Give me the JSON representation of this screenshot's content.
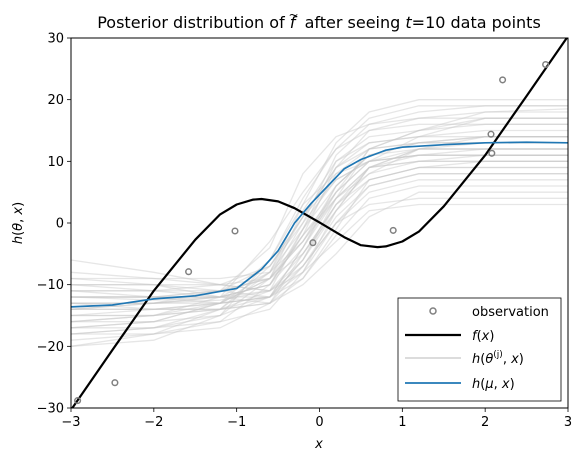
{
  "chart_data": {
    "type": "line",
    "title": "Posterior distribution of f̃ after seeing t=10 data points",
    "title_parts": {
      "pre": "Posterior distribution of ",
      "f": "f",
      "tilde": "~",
      "mid": " after seeing ",
      "t": "t",
      "post": "=10 data points"
    },
    "xlabel": "x",
    "ylabel_parts": {
      "h": "h",
      "open": "(",
      "theta": "θ",
      "comma": ", ",
      "x": "x",
      "close": ")"
    },
    "xlim": [
      -3,
      3
    ],
    "ylim": [
      -30,
      30
    ],
    "xticks": [
      -3,
      -2,
      -1,
      0,
      1,
      2,
      3
    ],
    "yticks": [
      -30,
      -20,
      -10,
      0,
      10,
      20,
      30
    ],
    "xtick_labels": [
      "−3",
      "−2",
      "−1",
      "0",
      "1",
      "2",
      "3"
    ],
    "ytick_labels": [
      "−30",
      "−20",
      "−10",
      "0",
      "10",
      "20",
      "30"
    ],
    "grid": false,
    "legend_position": "lower-right",
    "legend": [
      {
        "key": "observation",
        "label": "observation"
      },
      {
        "key": "f",
        "label_parts": [
          "f",
          "(",
          "x",
          ")"
        ]
      },
      {
        "key": "samples",
        "label_parts": [
          "h",
          "(",
          "θ",
          "(j)",
          ", ",
          "x",
          ")"
        ]
      },
      {
        "key": "mean",
        "label_parts": [
          "h",
          "(",
          "μ",
          ", ",
          "x",
          ")"
        ]
      }
    ],
    "colors": {
      "observation": "#808080",
      "f": "#000000",
      "samples": "#c8c8c8",
      "mean": "#1f77b4"
    },
    "observations": {
      "x": [
        -2.92,
        -2.47,
        -1.58,
        -1.02,
        -0.08,
        0.89,
        2.07,
        2.08,
        2.21,
        2.73
      ],
      "y": [
        -28.8,
        -25.9,
        -7.9,
        -1.3,
        -3.2,
        -1.2,
        14.4,
        11.3,
        23.2,
        25.7
      ]
    },
    "series": [
      {
        "key": "f",
        "x": [
          -3.0,
          -2.5,
          -2.0,
          -1.5,
          -1.2,
          -1.0,
          -0.8,
          -0.7,
          -0.5,
          -0.3,
          0.0,
          0.3,
          0.5,
          0.7,
          0.8,
          1.0,
          1.2,
          1.5,
          2.0,
          2.5,
          3.0
        ],
        "y": [
          -30.3,
          -20.6,
          -11.0,
          -2.7,
          1.4,
          3.0,
          3.8,
          3.9,
          3.5,
          2.4,
          0.1,
          -2.3,
          -3.6,
          -3.9,
          -3.8,
          -3.0,
          -1.4,
          2.7,
          11.0,
          20.6,
          30.3
        ]
      },
      {
        "key": "mean",
        "x": [
          -3.0,
          -2.5,
          -2.0,
          -1.5,
          -1.0,
          -0.7,
          -0.5,
          -0.3,
          -0.1,
          0.1,
          0.3,
          0.5,
          0.8,
          1.0,
          1.5,
          2.0,
          2.5,
          3.0
        ],
        "y": [
          -13.6,
          -13.3,
          -12.3,
          -11.8,
          -10.6,
          -7.5,
          -4.5,
          0.0,
          3.2,
          6.0,
          8.8,
          10.3,
          11.8,
          12.3,
          12.7,
          13.0,
          13.1,
          13.0
        ]
      }
    ],
    "posterior_samples": [
      {
        "x": [
          -3,
          -2,
          -1.2,
          -0.6,
          -0.2,
          0.2,
          0.6,
          1.2,
          2,
          3
        ],
        "y": [
          -12,
          -12.5,
          -12,
          -10,
          -4,
          6,
          11,
          12,
          12,
          12
        ]
      },
      {
        "x": [
          -3,
          -2,
          -1.2,
          -0.6,
          -0.2,
          0.2,
          0.6,
          1.2,
          2,
          3
        ],
        "y": [
          -18,
          -17,
          -14,
          -8,
          1,
          9,
          12,
          15,
          18,
          18.5
        ]
      },
      {
        "x": [
          -3,
          -2,
          -1.2,
          -0.6,
          -0.2,
          0.2,
          0.6,
          1.2,
          2,
          3
        ],
        "y": [
          -14,
          -14,
          -13,
          -9,
          -2,
          5,
          10,
          11,
          12,
          12
        ]
      },
      {
        "x": [
          -3,
          -2,
          -1.2,
          -0.6,
          -0.2,
          0.2,
          0.6,
          1.2,
          2,
          3
        ],
        "y": [
          -20,
          -19,
          -15,
          -6,
          3,
          8,
          10,
          14,
          17,
          17
        ]
      },
      {
        "x": [
          -3,
          -2,
          -1.2,
          -0.6,
          -0.2,
          0.2,
          0.6,
          1.2,
          2,
          3
        ],
        "y": [
          -10,
          -10,
          -11,
          -12,
          -6,
          4,
          12,
          13,
          13,
          13
        ]
      },
      {
        "x": [
          -3,
          -2,
          -1.2,
          -0.6,
          -0.2,
          0.2,
          0.6,
          1.2,
          2,
          3
        ],
        "y": [
          -16,
          -15,
          -12,
          -3,
          5,
          12,
          17,
          19,
          19,
          19
        ]
      },
      {
        "x": [
          -3,
          -2,
          -1.2,
          -0.6,
          -0.2,
          0.2,
          0.6,
          1.2,
          2,
          3
        ],
        "y": [
          -8,
          -9,
          -10,
          -11,
          -8,
          2,
          9,
          10,
          10,
          10
        ]
      },
      {
        "x": [
          -3,
          -2,
          -1.2,
          -0.6,
          -0.2,
          0.2,
          0.6,
          1.2,
          2,
          3
        ],
        "y": [
          -17,
          -16,
          -13,
          -12,
          -9,
          -1,
          7,
          9,
          9,
          9
        ]
      },
      {
        "x": [
          -3,
          -2,
          -1.2,
          -0.6,
          -0.2,
          0.2,
          0.6,
          1.2,
          2,
          3
        ],
        "y": [
          -13,
          -13,
          -12.5,
          -11,
          -1,
          10,
          14,
          15,
          16,
          16
        ]
      },
      {
        "x": [
          -3,
          -2,
          -1.2,
          -0.6,
          -0.2,
          0.2,
          0.6,
          1.2,
          2,
          3
        ],
        "y": [
          -15,
          -15,
          -14,
          -13,
          -7,
          0,
          6,
          8,
          8,
          8
        ]
      },
      {
        "x": [
          -3,
          -2,
          -1.2,
          -0.6,
          -0.2,
          0.2,
          0.6,
          1.2,
          2,
          3
        ],
        "y": [
          -11,
          -11,
          -10,
          -7,
          0,
          7,
          10,
          11,
          11,
          11
        ]
      },
      {
        "x": [
          -3,
          -2,
          -1.2,
          -0.6,
          -0.2,
          0.2,
          0.6,
          1.2,
          2,
          3
        ],
        "y": [
          -19,
          -18,
          -16,
          -10,
          -2,
          4,
          8,
          12,
          14,
          14
        ]
      },
      {
        "x": [
          -3,
          -2,
          -1.2,
          -0.6,
          -0.2,
          0.2,
          0.6,
          1.2,
          2,
          3
        ],
        "y": [
          -9,
          -10,
          -12,
          -13,
          -10,
          -5,
          1,
          5,
          5,
          5
        ]
      },
      {
        "x": [
          -3,
          -2,
          -1.2,
          -0.6,
          -0.2,
          0.2,
          0.6,
          1.2,
          2,
          3
        ],
        "y": [
          -14,
          -13,
          -11,
          -4,
          8,
          14,
          16,
          17,
          17,
          17
        ]
      },
      {
        "x": [
          -3,
          -2,
          -1.2,
          -0.6,
          -0.2,
          0.2,
          0.6,
          1.2,
          2,
          3
        ],
        "y": [
          -12,
          -12,
          -12,
          -11,
          -5,
          3,
          7,
          9,
          10,
          10
        ]
      },
      {
        "x": [
          -3,
          -2,
          -1.2,
          -0.6,
          -0.2,
          0.2,
          0.6,
          1.2,
          2,
          3
        ],
        "y": [
          -17,
          -17,
          -15,
          -9,
          2,
          10,
          13,
          14,
          15,
          15
        ]
      },
      {
        "x": [
          -3,
          -2,
          -1.2,
          -0.6,
          -0.2,
          0.2,
          0.6,
          1.2,
          2,
          3
        ],
        "y": [
          -10,
          -11,
          -11,
          -9,
          -3,
          4,
          9,
          12,
          13,
          13
        ]
      },
      {
        "x": [
          -3,
          -2,
          -1.2,
          -0.6,
          -0.2,
          0.2,
          0.6,
          1.2,
          2,
          3
        ],
        "y": [
          -6,
          -8,
          -10,
          -11,
          -7,
          1,
          6,
          8,
          8,
          8
        ]
      },
      {
        "x": [
          -3,
          -2,
          -1.2,
          -0.6,
          -0.2,
          0.2,
          0.6,
          1.2,
          2,
          3
        ],
        "y": [
          -15,
          -14,
          -13,
          -8,
          -1,
          6,
          11,
          13,
          14,
          14
        ]
      },
      {
        "x": [
          -3,
          -2,
          -1.2,
          -0.6,
          -0.2,
          0.2,
          0.6,
          1.2,
          2,
          3
        ],
        "y": [
          -13,
          -13,
          -12,
          -10,
          -2,
          9,
          15,
          17,
          18,
          18
        ]
      },
      {
        "x": [
          -3,
          -2,
          -1.2,
          -0.6,
          -0.2,
          0.2,
          0.6,
          1.2,
          2,
          3
        ],
        "y": [
          -18,
          -17,
          -16,
          -14,
          -8,
          0,
          5,
          7,
          7,
          7
        ]
      },
      {
        "x": [
          -3,
          -2,
          -1.2,
          -0.6,
          -0.2,
          0.2,
          0.6,
          1.2,
          2,
          3
        ],
        "y": [
          -11,
          -12,
          -13,
          -12,
          -4,
          5,
          10,
          12,
          12,
          12
        ]
      },
      {
        "x": [
          -3,
          -2,
          -1.2,
          -0.6,
          -0.2,
          0.2,
          0.6,
          1.2,
          2,
          3
        ],
        "y": [
          -16,
          -15,
          -14,
          -11,
          -6,
          2,
          9,
          11,
          11,
          11
        ]
      },
      {
        "x": [
          -3,
          -2,
          -1.2,
          -0.6,
          -0.2,
          0.2,
          0.6,
          1.2,
          2,
          3
        ],
        "y": [
          -12,
          -12,
          -11,
          -9,
          0,
          11,
          16,
          18,
          19,
          19
        ]
      },
      {
        "x": [
          -3,
          -2,
          -1.2,
          -0.6,
          -0.2,
          0.2,
          0.6,
          1.2,
          2,
          3
        ],
        "y": [
          -14,
          -14,
          -14,
          -13,
          -9,
          -2,
          4,
          6,
          6,
          6
        ]
      },
      {
        "x": [
          -3,
          -2,
          -1.2,
          -0.6,
          -0.2,
          0.2,
          0.6,
          1.2,
          2,
          3
        ],
        "y": [
          -9,
          -9,
          -9,
          -8,
          -3,
          6,
          11,
          13,
          13,
          13
        ]
      },
      {
        "x": [
          -3,
          -2,
          -1.2,
          -0.6,
          -0.2,
          0.2,
          0.6,
          1.2,
          2,
          3
        ],
        "y": [
          -20,
          -18,
          -14,
          -7,
          1,
          7,
          10,
          11,
          11,
          11
        ]
      },
      {
        "x": [
          -3,
          -2,
          -1.2,
          -0.6,
          -0.2,
          0.2,
          0.6,
          1.2,
          2,
          3
        ],
        "y": [
          -13,
          -13,
          -13,
          -12,
          -6,
          3,
          8,
          10,
          11,
          11
        ]
      },
      {
        "x": [
          -3,
          -2,
          -1.2,
          -0.6,
          -0.2,
          0.2,
          0.6,
          1.2,
          2,
          3
        ],
        "y": [
          -17,
          -16,
          -13,
          -6,
          4,
          12,
          15,
          16,
          16,
          16
        ]
      },
      {
        "x": [
          -3,
          -2,
          -1.2,
          -0.6,
          -0.2,
          0.2,
          0.6,
          1.2,
          2,
          3
        ],
        "y": [
          -11,
          -11,
          -12,
          -12,
          -7,
          0,
          3,
          4,
          4,
          4
        ]
      },
      {
        "x": [
          -3,
          -2,
          -1.2,
          -0.6,
          -0.2,
          0.2,
          0.6,
          1.2,
          2,
          3
        ],
        "y": [
          -15,
          -15,
          -13,
          -9,
          -3,
          5,
          12,
          15,
          17,
          17
        ]
      },
      {
        "x": [
          -3,
          -2,
          -1.2,
          -0.6,
          -0.2,
          0.2,
          0.6,
          1.2,
          2,
          3
        ],
        "y": [
          -12,
          -12,
          -12,
          -10,
          -1,
          8,
          12,
          13,
          14,
          14
        ]
      },
      {
        "x": [
          -3,
          -2,
          -1.2,
          -0.6,
          -0.2,
          0.2,
          0.6,
          1.2,
          2,
          3
        ],
        "y": [
          -18,
          -18,
          -17,
          -13,
          -5,
          3,
          9,
          12,
          12,
          12
        ]
      },
      {
        "x": [
          -3,
          -2,
          -1.2,
          -0.6,
          -0.2,
          0.2,
          0.6,
          1.2,
          2,
          3
        ],
        "y": [
          -10,
          -10,
          -10,
          -9,
          -5,
          2,
          7,
          9,
          9,
          9
        ]
      },
      {
        "x": [
          -3,
          -2,
          -1.2,
          -0.6,
          -0.2,
          0.2,
          0.6,
          1.2,
          2,
          3
        ],
        "y": [
          -14,
          -13,
          -12,
          -8,
          3,
          13,
          18,
          20,
          20,
          20
        ]
      },
      {
        "x": [
          -3,
          -2,
          -1.2,
          -0.6,
          -0.2,
          0.2,
          0.6,
          1.2,
          2,
          3
        ],
        "y": [
          -16,
          -16,
          -15,
          -12,
          -4,
          4,
          9,
          10,
          10,
          10
        ]
      },
      {
        "x": [
          -3,
          -2,
          -1.2,
          -0.6,
          -0.2,
          0.2,
          0.6,
          1.2,
          2,
          3
        ],
        "y": [
          -13,
          -14,
          -14,
          -12,
          -8,
          -3,
          2,
          3,
          3,
          3
        ]
      },
      {
        "x": [
          -3,
          -2,
          -1.2,
          -0.6,
          -0.2,
          0.2,
          0.6,
          1.2,
          2,
          3
        ],
        "y": [
          -12,
          -12,
          -11,
          -7,
          1,
          9,
          13,
          14,
          14,
          14
        ]
      }
    ]
  }
}
